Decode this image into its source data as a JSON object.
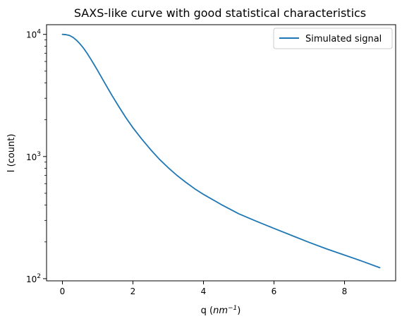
{
  "chart_data": {
    "type": "line",
    "title": "SAXS-like curve with good statistical characteristics",
    "xlabel_base": "q (",
    "xlabel_italic": "nm",
    "xlabel_sup": "−1",
    "xlabel_end": ")",
    "ylabel": "I (count)",
    "x_scale": "linear",
    "y_scale": "log",
    "xlim": [
      -0.45,
      9.45
    ],
    "ylim": [
      96,
      12000
    ],
    "x_ticks": [
      0,
      2,
      4,
      6,
      8
    ],
    "x_tick_labels": [
      "0",
      "2",
      "4",
      "6",
      "8"
    ],
    "y_major_ticks": [
      100,
      1000,
      10000
    ],
    "y_tick_labels": [
      "10^2",
      "10^3",
      "10^4"
    ],
    "grid": false,
    "legend_position": "top-right",
    "series": [
      {
        "name": "Simulated signal",
        "color": "#1f77b4",
        "x": [
          0,
          0.1,
          0.2,
          0.3,
          0.4,
          0.5,
          0.6,
          0.7,
          0.8,
          0.9,
          1.0,
          1.2,
          1.4,
          1.6,
          1.8,
          2.0,
          2.25,
          2.5,
          2.75,
          3.0,
          3.25,
          3.5,
          3.75,
          4.0,
          4.5,
          5.0,
          5.5,
          6.0,
          6.5,
          7.0,
          7.5,
          8.0,
          8.5,
          9.0
        ],
        "y": [
          10000,
          9950,
          9800,
          9450,
          8950,
          8350,
          7700,
          7000,
          6300,
          5650,
          5050,
          4000,
          3180,
          2560,
          2080,
          1720,
          1390,
          1140,
          950,
          810,
          700,
          615,
          545,
          490,
          405,
          340,
          295,
          258,
          226,
          198,
          175,
          156,
          139,
          123
        ]
      }
    ]
  }
}
